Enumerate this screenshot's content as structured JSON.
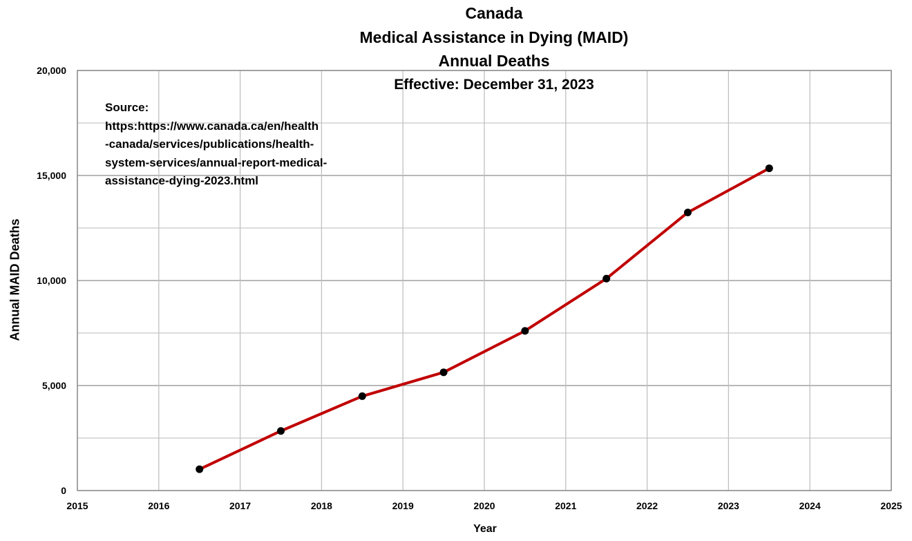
{
  "title_lines": [
    "Canada",
    "Medical Assistance in Dying (MAID)",
    "Annual Deaths"
  ],
  "subtitle": "Effective: December 31, 2023",
  "source_text": "Source:\nhttps:https://www.canada.ca/en/health\n-canada/services/publications/health-\nsystem-services/annual-report-medical-\nassistance-dying-2023.html",
  "chart_data": {
    "type": "line",
    "xlabel": "Year",
    "ylabel": "Annual MAID Deaths",
    "xlim": [
      2015,
      2025
    ],
    "ylim": [
      0,
      20000
    ],
    "x_ticks": [
      2015,
      2016,
      2017,
      2018,
      2019,
      2020,
      2021,
      2022,
      2023,
      2024,
      2025
    ],
    "y_ticks": [
      {
        "value": 0,
        "label": "0"
      },
      {
        "value": 5000,
        "label": "5,000"
      },
      {
        "value": 10000,
        "label": "10,000"
      },
      {
        "value": 15000,
        "label": "15,000"
      },
      {
        "value": 20000,
        "label": "20,000"
      }
    ],
    "grid": true,
    "series": [
      {
        "color": "#c00000",
        "marker_color": "#000000",
        "x": [
          2016.5,
          2017.5,
          2018.5,
          2019.5,
          2020.5,
          2021.5,
          2022.5,
          2023.5
        ],
        "y": [
          1015,
          2838,
          4493,
          5631,
          7603,
          10092,
          13241,
          15343
        ]
      }
    ]
  }
}
